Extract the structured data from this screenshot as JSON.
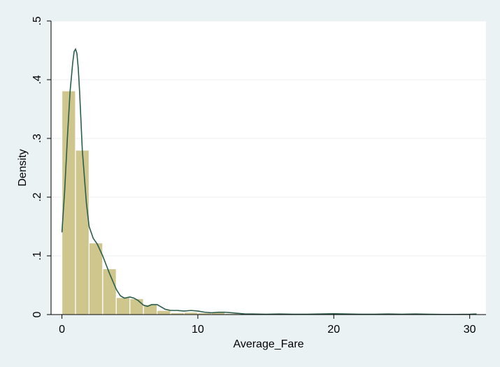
{
  "chart_data": {
    "type": "bar",
    "title": "",
    "xlabel": "Average_Fare",
    "ylabel": "Density",
    "xlim": [
      -0.8,
      31.2
    ],
    "ylim": [
      0,
      0.5
    ],
    "xticks": [
      0,
      10,
      20,
      30
    ],
    "xtick_labels": [
      "0",
      "10",
      "20",
      "30"
    ],
    "yticks": [
      0,
      0.1,
      0.2,
      0.3,
      0.4,
      0.5
    ],
    "ytick_labels": [
      "0",
      ".1",
      ".2",
      ".3",
      ".4",
      ".5"
    ],
    "grid": true,
    "bar_color": "#cfc68e",
    "bar_edge_color": "#ffffff",
    "line_color": "#2b5e4a",
    "plot_bg": "#ffffff",
    "outer_bg": "#eaf2f3",
    "histogram": {
      "bin_width": 1.0,
      "bins": [
        {
          "x0": 0,
          "x1": 1,
          "density": 0.381
        },
        {
          "x0": 1,
          "x1": 2,
          "density": 0.28
        },
        {
          "x0": 2,
          "x1": 3,
          "density": 0.122
        },
        {
          "x0": 3,
          "x1": 4,
          "density": 0.078
        },
        {
          "x0": 4,
          "x1": 5,
          "density": 0.029
        },
        {
          "x0": 5,
          "x1": 6,
          "density": 0.027
        },
        {
          "x0": 6,
          "x1": 7,
          "density": 0.017
        },
        {
          "x0": 7,
          "x1": 8,
          "density": 0.007
        },
        {
          "x0": 8,
          "x1": 9,
          "density": 0.003
        },
        {
          "x0": 9,
          "x1": 10,
          "density": 0.004
        },
        {
          "x0": 10,
          "x1": 11,
          "density": 0.003
        },
        {
          "x0": 11,
          "x1": 12,
          "density": 0.004
        },
        {
          "x0": 12,
          "x1": 13,
          "density": 0.002
        },
        {
          "x0": 13,
          "x1": 14,
          "density": 0.001
        }
      ]
    },
    "kde": {
      "x": [
        0,
        0.2,
        0.4,
        0.6,
        0.8,
        0.9,
        1.0,
        1.1,
        1.2,
        1.3,
        1.5,
        1.8,
        2.0,
        2.3,
        2.6,
        3.0,
        3.5,
        4.0,
        4.3,
        4.6,
        5.0,
        5.3,
        5.6,
        6.0,
        6.3,
        6.6,
        7.0,
        7.3,
        7.6,
        8.0,
        8.5,
        9.0,
        9.5,
        10.0,
        10.5,
        11.0,
        11.5,
        12.0,
        12.5,
        13.0,
        13.5,
        14.0,
        15.0,
        16.0,
        17.0,
        18.0,
        19.0,
        20.0,
        21.0,
        22.0,
        23.0,
        24.0,
        25.0,
        26.0,
        27.0,
        28.0,
        29.0,
        30.0,
        30.5
      ],
      "y": [
        0.14,
        0.21,
        0.3,
        0.38,
        0.43,
        0.448,
        0.452,
        0.445,
        0.42,
        0.38,
        0.28,
        0.19,
        0.15,
        0.13,
        0.12,
        0.1,
        0.07,
        0.043,
        0.032,
        0.028,
        0.03,
        0.028,
        0.024,
        0.016,
        0.014,
        0.017,
        0.017,
        0.013,
        0.009,
        0.007,
        0.007,
        0.006,
        0.007,
        0.006,
        0.004,
        0.003,
        0.004,
        0.004,
        0.003,
        0.002,
        0.001,
        0.001,
        0.0005,
        0.001,
        0.0005,
        0.0005,
        0.001,
        0.0015,
        0.001,
        0.0005,
        0.0005,
        0.001,
        0.0005,
        0.001,
        0.0005,
        0.0003,
        0.0003,
        0.0005,
        0.001
      ]
    }
  }
}
